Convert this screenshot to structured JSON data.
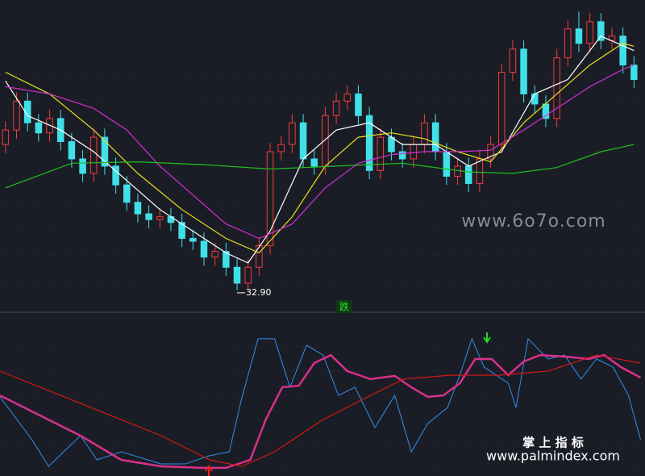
{
  "chart_data": {
    "type": "candlestick",
    "xlim": [
      -0.5,
      58
    ],
    "ylim": [
      31.5,
      53
    ],
    "up_color": "#f03c3c",
    "down_color": "#40e0e8",
    "candles": [
      [
        43.0,
        44.6,
        42.4,
        44.0
      ],
      [
        44.0,
        46.6,
        43.4,
        46.0
      ],
      [
        46.0,
        46.6,
        43.9,
        44.5
      ],
      [
        44.5,
        45.1,
        43.2,
        43.8
      ],
      [
        43.8,
        45.4,
        43.2,
        44.8
      ],
      [
        44.8,
        45.4,
        42.6,
        43.2
      ],
      [
        43.2,
        43.8,
        41.4,
        42.0
      ],
      [
        42.0,
        42.6,
        40.4,
        41.0
      ],
      [
        41.0,
        44.1,
        40.4,
        43.5
      ],
      [
        43.5,
        44.1,
        40.9,
        41.5
      ],
      [
        41.5,
        42.1,
        39.6,
        40.2
      ],
      [
        40.2,
        40.8,
        38.4,
        39.0
      ],
      [
        39.0,
        39.6,
        37.6,
        38.2
      ],
      [
        38.2,
        38.8,
        37.2,
        37.8
      ],
      [
        37.8,
        38.6,
        37.2,
        38.0
      ],
      [
        38.0,
        38.6,
        37.0,
        37.6
      ],
      [
        37.6,
        38.2,
        35.9,
        36.5
      ],
      [
        36.5,
        37.1,
        35.7,
        36.3
      ],
      [
        36.3,
        36.9,
        34.6,
        35.2
      ],
      [
        35.2,
        36.2,
        34.6,
        35.6
      ],
      [
        35.6,
        36.2,
        33.9,
        34.5
      ],
      [
        34.5,
        35.1,
        32.9,
        33.4
      ],
      [
        33.4,
        35.1,
        33.0,
        34.5
      ],
      [
        34.5,
        36.6,
        33.9,
        36.0
      ],
      [
        36.0,
        43.1,
        35.4,
        42.5
      ],
      [
        42.5,
        43.6,
        41.9,
        43.0
      ],
      [
        43.0,
        45.1,
        42.4,
        44.5
      ],
      [
        44.5,
        45.1,
        41.4,
        42.0
      ],
      [
        42.0,
        42.6,
        40.9,
        41.5
      ],
      [
        41.5,
        45.6,
        40.9,
        45.0
      ],
      [
        45.0,
        46.6,
        44.4,
        46.0
      ],
      [
        46.0,
        47.1,
        45.4,
        46.5
      ],
      [
        46.5,
        47.1,
        44.4,
        45.0
      ],
      [
        45.0,
        45.6,
        40.6,
        41.2
      ],
      [
        41.2,
        44.1,
        40.6,
        43.5
      ],
      [
        43.5,
        44.1,
        41.9,
        42.5
      ],
      [
        42.5,
        43.1,
        41.4,
        42.0
      ],
      [
        42.0,
        43.6,
        41.4,
        43.0
      ],
      [
        43.0,
        45.1,
        42.4,
        44.5
      ],
      [
        44.5,
        45.1,
        41.9,
        42.5
      ],
      [
        42.5,
        43.1,
        40.2,
        40.8
      ],
      [
        40.8,
        42.1,
        40.2,
        41.5
      ],
      [
        41.5,
        42.1,
        39.7,
        40.3
      ],
      [
        40.3,
        42.6,
        39.7,
        42.0
      ],
      [
        42.0,
        43.6,
        41.4,
        43.0
      ],
      [
        43.0,
        48.6,
        42.4,
        48.0
      ],
      [
        48.0,
        50.2,
        47.4,
        49.6
      ],
      [
        49.6,
        50.2,
        45.9,
        46.5
      ],
      [
        46.5,
        47.1,
        45.2,
        45.8
      ],
      [
        45.8,
        46.4,
        44.2,
        44.8
      ],
      [
        44.8,
        49.6,
        44.2,
        49.0
      ],
      [
        49.0,
        51.6,
        48.4,
        51.0
      ],
      [
        51.0,
        52.2,
        49.4,
        50.0
      ],
      [
        50.0,
        52.1,
        49.4,
        51.5
      ],
      [
        51.5,
        52.1,
        49.6,
        50.2
      ],
      [
        50.2,
        51.1,
        49.6,
        50.5
      ],
      [
        50.5,
        51.1,
        47.9,
        48.5
      ],
      [
        48.5,
        49.1,
        46.9,
        47.5
      ]
    ],
    "low_label": "32.90",
    "moving_averages": [
      {
        "color": "#ffffff",
        "x": [
          0,
          2,
          5,
          8,
          11,
          14,
          17,
          20,
          22,
          24,
          27,
          30,
          33,
          36,
          39,
          42,
          45,
          48,
          51,
          54,
          57
        ],
        "values": [
          47.4,
          45.0,
          44.0,
          42.5,
          40.5,
          38.5,
          37.0,
          35.5,
          34.8,
          37.0,
          42.0,
          44.0,
          44.5,
          43.0,
          43.0,
          41.5,
          42.5,
          46.5,
          47.5,
          50.5,
          49.5
        ]
      },
      {
        "color": "#e8e020",
        "x": [
          0,
          4,
          8,
          12,
          16,
          20,
          23,
          26,
          29,
          32,
          35,
          38,
          41,
          44,
          47,
          50,
          53,
          56,
          57
        ],
        "values": [
          48.0,
          46.5,
          44.0,
          41.0,
          38.5,
          36.5,
          35.5,
          38.0,
          41.5,
          43.5,
          43.8,
          43.4,
          42.5,
          41.8,
          44.5,
          46.5,
          48.5,
          50.0,
          49.8
        ]
      },
      {
        "color": "#d030d0",
        "x": [
          0,
          4,
          8,
          11,
          14,
          17,
          20,
          23,
          26,
          29,
          32,
          35,
          38,
          41,
          44,
          47,
          50,
          53,
          56,
          57
        ],
        "values": [
          47.0,
          46.5,
          45.5,
          44.0,
          41.5,
          39.5,
          37.5,
          36.5,
          37.5,
          40.0,
          41.7,
          42.3,
          42.5,
          42.5,
          42.6,
          44.0,
          45.5,
          47.0,
          48.2,
          48.5
        ]
      },
      {
        "color": "#20c020",
        "x": [
          0,
          6,
          12,
          18,
          24,
          30,
          36,
          42,
          46,
          50,
          54,
          57
        ],
        "values": [
          40.0,
          41.7,
          41.8,
          41.6,
          41.3,
          41.5,
          41.7,
          41.1,
          41.0,
          41.4,
          42.5,
          43.0
        ]
      }
    ],
    "signal_label": "跌",
    "indicator": {
      "ylim": [
        0,
        100
      ],
      "lines": [
        {
          "color": "#2f8ff0",
          "width": 1,
          "x": [
            -0.5,
            2.4,
            3.9,
            6.8,
            8.3,
            10.5,
            14.1,
            16.3,
            18.5,
            20.3,
            21.4,
            22.9,
            24.4,
            25.8,
            27.3,
            28.8,
            30.2,
            31.7,
            33.5,
            35.3,
            36.8,
            38.3,
            40.1,
            41.2,
            42.3,
            43.4,
            45.6,
            46.3,
            47.4,
            49.2,
            50.7,
            52.2,
            53.6,
            55.1,
            56.5,
            57.6
          ],
          "values": [
            51.6,
            23.7,
            6.3,
            26.3,
            10.5,
            15.8,
            7.9,
            7.9,
            13.2,
            15.8,
            50,
            89.5,
            89.5,
            57.9,
            85.3,
            78.9,
            52.6,
            57.9,
            31.6,
            52.6,
            15.8,
            34.2,
            44.7,
            65.8,
            89.5,
            71.1,
            60.5,
            44.7,
            89.5,
            76.3,
            78.9,
            63.2,
            76.3,
            71.1,
            52.6,
            23.7
          ]
        },
        {
          "color": "#d8308a",
          "width": 2.5,
          "x": [
            -0.5,
            2.4,
            6.8,
            10.5,
            14.1,
            17.8,
            20,
            22.2,
            23.6,
            25.1,
            26.6,
            28,
            29.5,
            31,
            33.1,
            35.3,
            36.8,
            38.3,
            39.7,
            41.2,
            42.6,
            44.1,
            45.6,
            47,
            48.5,
            50.7,
            52.9,
            54.3,
            55.8,
            57.6
          ],
          "values": [
            52.6,
            42.1,
            26.3,
            10.5,
            6.3,
            5.3,
            5.3,
            10.5,
            36.8,
            57.9,
            58.9,
            73.7,
            78.9,
            68.4,
            63.2,
            65.3,
            57.9,
            51.6,
            52.6,
            60.5,
            76.3,
            76.3,
            65.8,
            74.7,
            78.9,
            77.9,
            76.3,
            78.9,
            71.1,
            64.2
          ]
        },
        {
          "color": "#d01818",
          "width": 1.2,
          "x": [
            -0.5,
            6.8,
            14.1,
            18.5,
            21.4,
            24.4,
            28.8,
            32.4,
            36.1,
            40.4,
            44.8,
            49.2,
            53.6,
            57.6
          ],
          "values": [
            68.4,
            47.4,
            26.3,
            10.5,
            6.3,
            15.8,
            36.8,
            50,
            63.2,
            65.8,
            65.8,
            68.4,
            78.9,
            73.7
          ]
        }
      ]
    },
    "watermarks": [
      "www.6o7o.com",
      "掌 上 指 标",
      "www.palmindex.com"
    ]
  }
}
